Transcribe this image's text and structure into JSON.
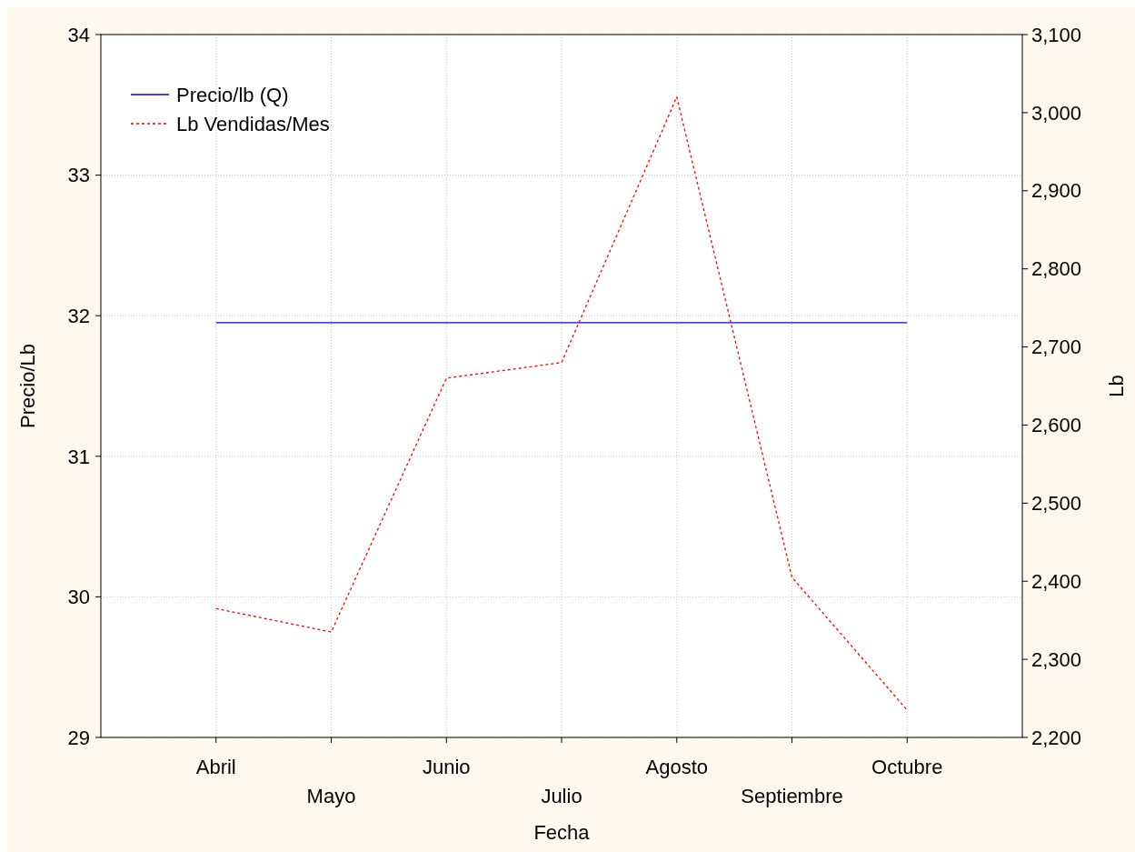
{
  "chart_data": {
    "type": "line",
    "xlabel": "Fecha",
    "ylabel": "Precio/Lb",
    "y2label": "Lb",
    "categories": [
      "Abril",
      "Mayo",
      "Junio",
      "Julio",
      "Agosto",
      "Septiembre",
      "Octubre"
    ],
    "series": [
      {
        "name": "Precio/lb (Q)",
        "color": "#0000ff",
        "line_style": "solid",
        "values": [
          31.95,
          31.95,
          31.95,
          31.95,
          31.95,
          31.95,
          31.95
        ]
      },
      {
        "name": "Lb Vendidas/Mes",
        "color": "#ff0000",
        "line_style": "dotted",
        "axis": "y2",
        "values": [
          2365,
          2335,
          2660,
          2680,
          3020,
          2405,
          2235
        ]
      }
    ],
    "ylim": [
      29,
      34
    ],
    "yticks": [
      29,
      30,
      31,
      32,
      33,
      34
    ],
    "y2lim": [
      2200,
      3100
    ],
    "y2ticks": [
      {
        "value": 2200,
        "label": "2,200"
      },
      {
        "value": 2300,
        "label": "2,300"
      },
      {
        "value": 2400,
        "label": "2,400"
      },
      {
        "value": 2500,
        "label": "2,500"
      },
      {
        "value": 2600,
        "label": "2,600"
      },
      {
        "value": 2700,
        "label": "2,700"
      },
      {
        "value": 2800,
        "label": "2,800"
      },
      {
        "value": 2900,
        "label": "2,900"
      },
      {
        "value": 3000,
        "label": "3,000"
      },
      {
        "value": 3100,
        "label": "3,100"
      }
    ],
    "grid": true,
    "legend": "top left"
  }
}
